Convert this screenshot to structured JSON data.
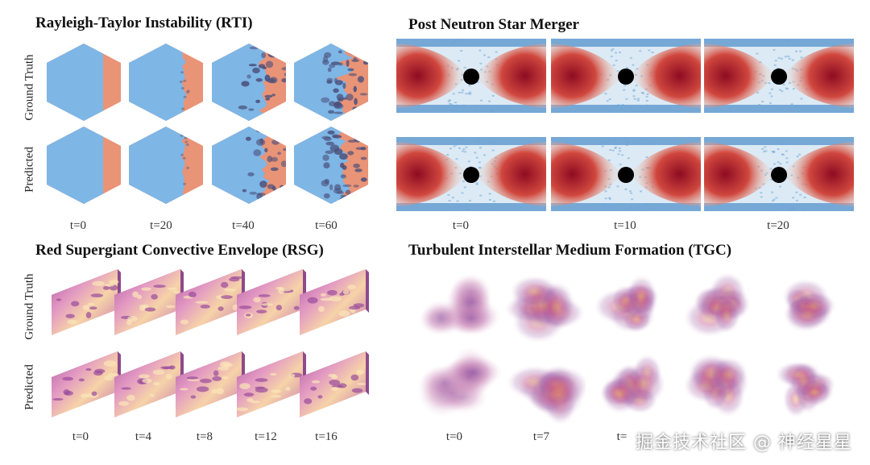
{
  "panels": {
    "rti": {
      "title": "Rayleigh-Taylor Instability (RTI)",
      "row_labels": [
        "Ground Truth",
        "Predicted"
      ],
      "times": [
        "t=0",
        "t=20",
        "t=40",
        "t=60"
      ]
    },
    "nsm": {
      "title": "Post Neutron Star Merger",
      "times": [
        "t=0",
        "t=10",
        "t=20"
      ]
    },
    "rsg": {
      "title": "Red Supergiant Convective Envelope (RSG)",
      "row_labels": [
        "Ground Truth",
        "Predicted"
      ],
      "times": [
        "t=0",
        "t=4",
        "t=8",
        "t=12",
        "t=16"
      ]
    },
    "tgc": {
      "title": "Turbulent Interstellar Medium Formation (TGC)",
      "times": [
        "t=0",
        "t=7",
        "t=",
        "",
        ""
      ]
    }
  },
  "watermark": "掘金技术社区 @ 神经星星",
  "colors": {
    "rti_fluid_blue": "#7eb6e6",
    "rti_fluid_orange": "#e99377",
    "nsm_red": "#b2182b",
    "nsm_blue": "#4a8cc9",
    "rsg_pink": "#d77fb4",
    "tgc_purple": "#9b6aa8"
  }
}
